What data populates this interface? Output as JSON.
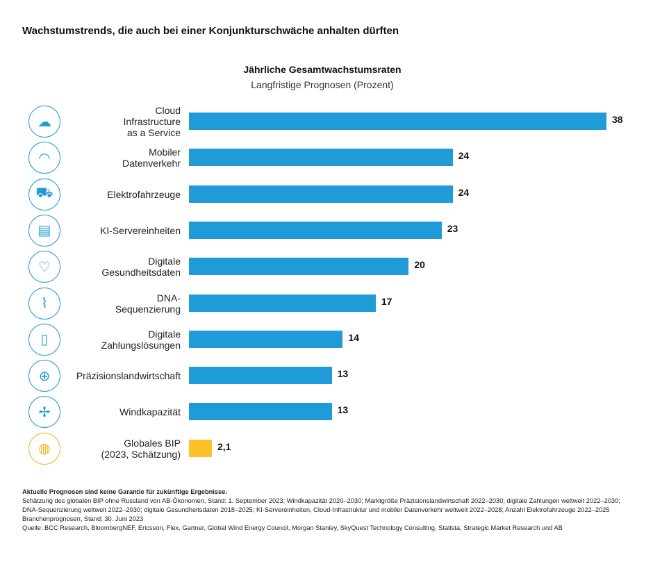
{
  "title": "Wachstumstrends, die auch bei einer Konjunkturschwäche anhalten dürften",
  "chart_data": {
    "type": "bar",
    "orientation": "horizontal",
    "title": "Jährliche Gesamtwachstumsraten",
    "subtitle": "Langfristige Prognosen (Prozent)",
    "categories": [
      "Cloud Infrastructure as a Service",
      "Mobiler Datenverkehr",
      "Elektrofahrzeuge",
      "KI-Servereinheiten",
      "Digitale Gesundheitsdaten",
      "DNA-Sequenzierung",
      "Digitale Zahlungslösungen",
      "Präzisionslandwirtschaft",
      "Windkapazität",
      "Globales BIP (2023, Schätzung)"
    ],
    "label_lines": [
      [
        "Cloud",
        "Infrastructure",
        "as a Service"
      ],
      [
        "Mobiler",
        "Datenverkehr"
      ],
      [
        "Elektrofahrzeuge"
      ],
      [
        "KI-Servereinheiten"
      ],
      [
        "Digitale",
        "Gesundheitsdaten"
      ],
      [
        "DNA-",
        "Sequenzierung"
      ],
      [
        "Digitale",
        "Zahlungslösungen"
      ],
      [
        "Präzisionslandwirtschaft"
      ],
      [
        "Windkapazität"
      ],
      [
        "Globales BIP",
        "(2023, Schätzung)"
      ]
    ],
    "values": [
      38,
      24,
      24,
      23,
      20,
      17,
      14,
      13,
      13,
      2.1
    ],
    "value_labels": [
      "38",
      "24",
      "24",
      "23",
      "20",
      "17",
      "14",
      "13",
      "13",
      "2,1"
    ],
    "icons": [
      "cloud-server-icon",
      "wifi-icon",
      "electric-car-icon",
      "server-icon",
      "heart-plus-icon",
      "dna-icon",
      "mobile-payment-icon",
      "plant-target-icon",
      "wind-turbine-icon",
      "globe-growth-icon"
    ],
    "bar_colors": [
      "#1f9bd7",
      "#1f9bd7",
      "#1f9bd7",
      "#1f9bd7",
      "#1f9bd7",
      "#1f9bd7",
      "#1f9bd7",
      "#1f9bd7",
      "#1f9bd7",
      "#fdc12a"
    ],
    "xlim": [
      0,
      38
    ],
    "grid": false
  },
  "notes": {
    "disclaimer": "Aktuelle Prognosen sind keine Garantie für zukünftige Ergebnisse.",
    "line1": "Schätzung des globalen BIP ohne Russland von AB-Ökonomen, Stand: 1. September 2023; Windkapazität 2020–2030; Marktgröße Präzisionslandwirtschaft 2022–2030; digitale Zahlungen weltweit 2022–2030;",
    "line2": "DNA-Sequenzierung weltweit 2022–2030; digitale Gesundheitsdaten 2018–2025; KI-Servereinheiten, Cloud-Infrastruktur und mobiler Datenverkehr weltweit 2022–2028; Anzahl Elektrofahrzeuge 2022–2025",
    "line3": "Branchenprognosen, Stand: 30. Juni 2023",
    "source": "Quelle: BCC Research, BloombergNEF, Ericsson, Flex, Gartner, Global Wind Energy Council, Morgan Stanley, SkyQuest Technology Consulting, Statista, Strategic Market Research und AB"
  }
}
